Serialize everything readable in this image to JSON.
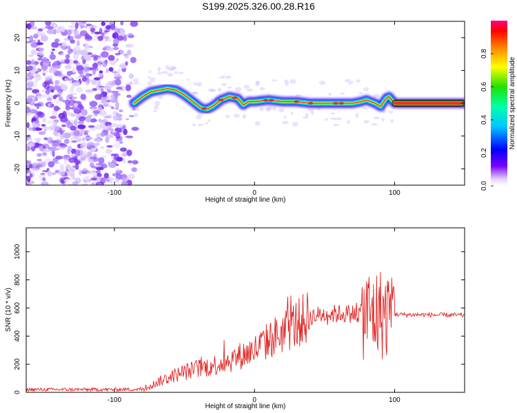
{
  "title": "S199.2025.326.00.28.R16",
  "colors": {
    "spectrum_low": "#7b2ff7",
    "signal_ridge": "#ff3333",
    "snr_line": "#e02020"
  },
  "chart_data": [
    {
      "type": "heatmap",
      "xlabel": "Height of straight line (km)",
      "ylabel": "Frequency (Hz)",
      "xlim": [
        -163,
        150
      ],
      "ylim": [
        -25,
        25
      ],
      "xticks": [
        -100,
        0,
        100
      ],
      "yticks": [
        -20,
        -10,
        0,
        10,
        20
      ],
      "colorbar": {
        "label": "Normalized spectral amplitude",
        "range": [
          0,
          1
        ],
        "ticks": [
          "0.0",
          "0.2",
          "0.4",
          "0.6",
          "0.8"
        ]
      },
      "ridge": {
        "x": [
          -86,
          -80,
          -74,
          -68,
          -62,
          -56,
          -50,
          -44,
          -38,
          -34,
          -30,
          -24,
          -18,
          -12,
          -8,
          -4,
          0,
          10,
          20,
          30,
          40,
          50,
          60,
          70,
          76,
          80,
          86,
          90,
          94,
          96,
          100,
          150
        ],
        "y": [
          0,
          2,
          3.5,
          4,
          4.5,
          4,
          2.5,
          0.5,
          -1.5,
          -1.8,
          -1,
          1,
          2,
          1.5,
          -0.5,
          0.5,
          0.5,
          1,
          0.5,
          0.5,
          0,
          0,
          0,
          0,
          0.5,
          1,
          0,
          -1,
          1.5,
          2,
          0,
          0
        ]
      }
    },
    {
      "type": "line",
      "xlabel": "Height of straight line (km)",
      "ylabel": "SNR (10 * v/v)",
      "xlim": [
        -163,
        150
      ],
      "ylim": [
        0,
        1170
      ],
      "xticks": [
        -100,
        0,
        100
      ],
      "yticks": [
        0,
        200,
        400,
        600,
        800,
        1000
      ],
      "series": [
        {
          "x": [
            -163,
            -100,
            -80,
            -75,
            -70,
            -60,
            -50,
            -40,
            -30,
            -20,
            -10,
            0,
            10,
            20,
            30,
            40,
            50,
            60,
            70,
            75,
            80,
            85,
            90,
            95,
            100,
            110,
            120,
            130,
            140,
            150
          ],
          "values": [
            20,
            20,
            22,
            40,
            70,
            110,
            145,
            170,
            190,
            220,
            260,
            300,
            370,
            430,
            490,
            540,
            555,
            560,
            560,
            558,
            560,
            555,
            560,
            555,
            555,
            552,
            552,
            550,
            550,
            548
          ]
        }
      ]
    }
  ]
}
